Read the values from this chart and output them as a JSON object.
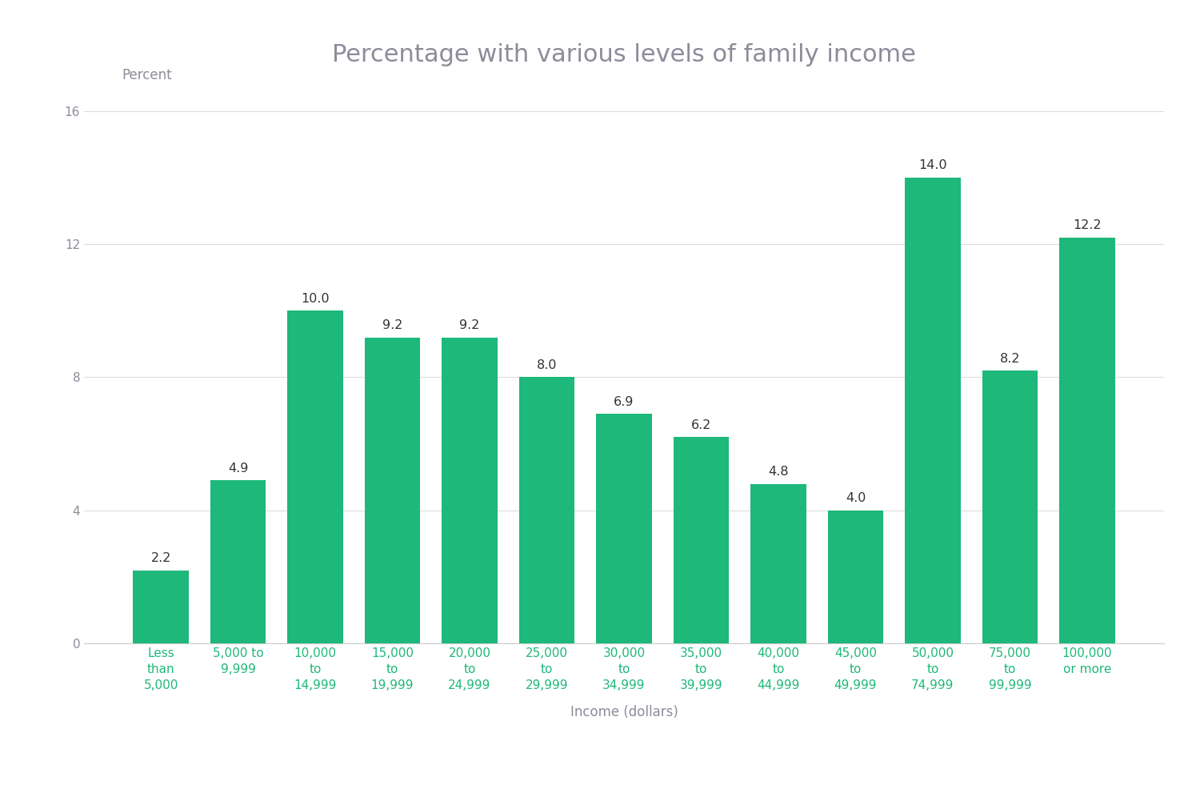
{
  "title": "Percentage with various levels of family income",
  "xlabel": "Income (dollars)",
  "ylabel": "Percent",
  "categories": [
    "Less\nthan\n5,000",
    "5,000 to\n9,999",
    "10,000\nto\n14,999",
    "15,000\nto\n19,999",
    "20,000\nto\n24,999",
    "25,000\nto\n29,999",
    "30,000\nto\n34,999",
    "35,000\nto\n39,999",
    "40,000\nto\n44,999",
    "45,000\nto\n49,999",
    "50,000\nto\n74,999",
    "75,000\nto\n99,999",
    "100,000\nor more"
  ],
  "values": [
    2.2,
    4.9,
    10.0,
    9.2,
    9.2,
    8.0,
    6.9,
    6.2,
    4.8,
    4.0,
    14.0,
    8.2,
    12.2
  ],
  "bar_color": "#1DB87A",
  "background_color": "#FFFFFF",
  "text_color": "#8C8C9A",
  "label_color": "#1DB87A",
  "title_color": "#8C8C9A",
  "ylim": [
    0,
    16.5
  ],
  "yticks": [
    0,
    4,
    8,
    12,
    16
  ],
  "title_fontsize": 22,
  "axis_label_fontsize": 12,
  "tick_label_fontsize": 11,
  "bar_label_fontsize": 11.5
}
